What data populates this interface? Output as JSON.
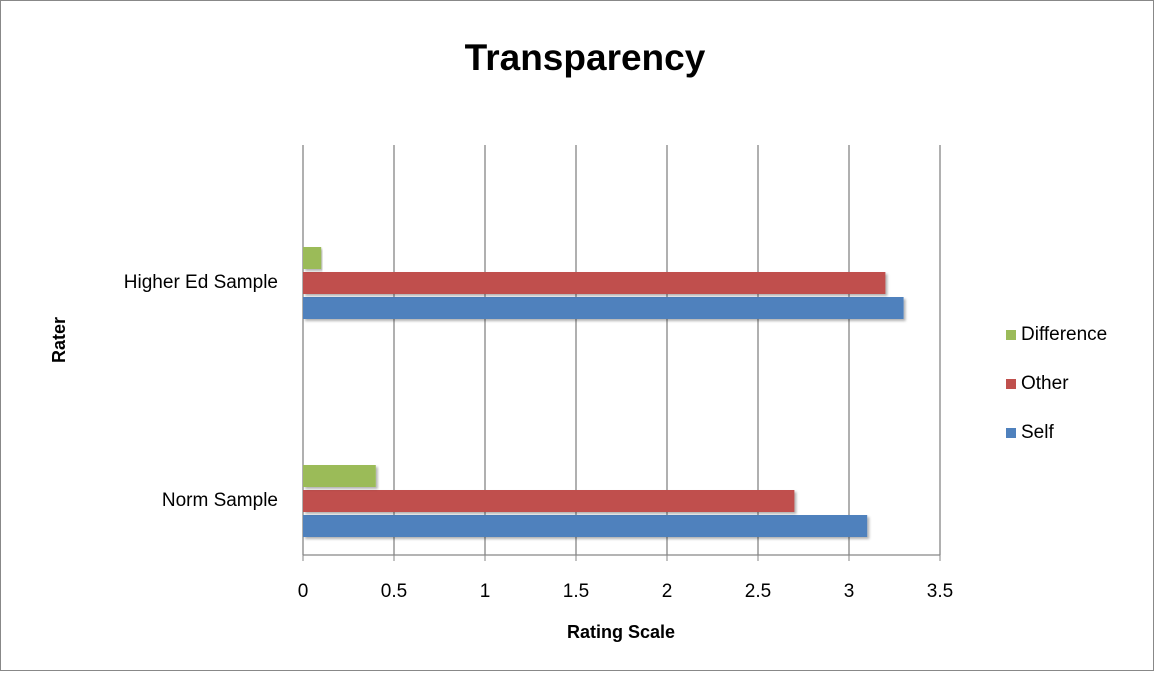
{
  "chart_data": {
    "type": "bar",
    "orientation": "horizontal",
    "title": "Transparency",
    "x_label": "Rating Scale",
    "y_label": "Rater",
    "categories": [
      "Norm Sample",
      "Higher Ed Sample"
    ],
    "series": [
      {
        "name": "Self",
        "color": "#4f81bd",
        "values": [
          3.1,
          3.3
        ]
      },
      {
        "name": "Other",
        "color": "#c0504d",
        "values": [
          2.7,
          3.2
        ]
      },
      {
        "name": "Difference",
        "color": "#9bbb59",
        "values": [
          0.4,
          0.1
        ]
      }
    ],
    "xlim": [
      0,
      3.5
    ],
    "xticks": [
      0,
      0.5,
      1,
      1.5,
      2,
      2.5,
      3,
      3.5
    ],
    "grid": true,
    "legend": "right"
  }
}
